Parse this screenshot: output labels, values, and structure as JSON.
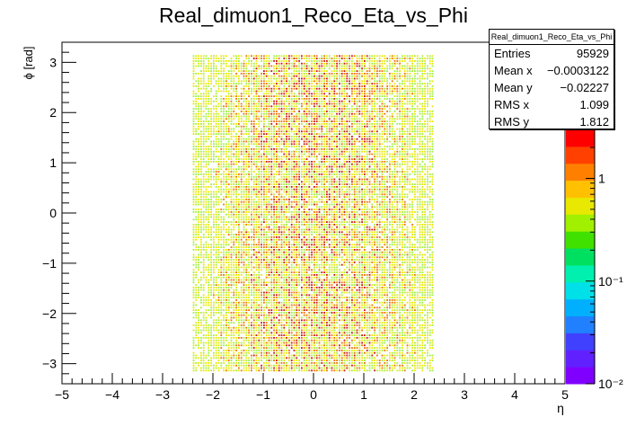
{
  "chart_data": {
    "type": "heatmap",
    "title": "Real_dimuon1_Reco_Eta_vs_Phi",
    "xlabel": "η",
    "ylabel": "ϕ [rad]",
    "xlim": [
      -5,
      5
    ],
    "ylim": [
      -3.4,
      3.4
    ],
    "x_ticks": [
      -5,
      -4,
      -3,
      -2,
      -1,
      0,
      1,
      2,
      3,
      4,
      5
    ],
    "y_ticks": [
      -3,
      -2,
      -1,
      0,
      1,
      2,
      3
    ],
    "data_x_range": [
      -2.4,
      2.4
    ],
    "data_y_range": [
      -3.14159,
      3.14159
    ],
    "z_scale": "log",
    "z_range": [
      0.01,
      3
    ],
    "z_ticks": [
      "10⁻²",
      "10⁻¹",
      "1"
    ],
    "stats": {
      "name": "Real_dimuon1_Reco_Eta_vs_Phi",
      "rows": [
        {
          "label": "Entries",
          "value": "95929"
        },
        {
          "label": "Mean x",
          "value": "−0.0003122"
        },
        {
          "label": "Mean y",
          "value": "−0.02227"
        },
        {
          "label": "RMS x",
          "value": "1.099"
        },
        {
          "label": "RMS y",
          "value": "1.812"
        }
      ]
    }
  },
  "colors": {
    "low": "#9ff03c",
    "mid": "#e8e800",
    "high": "#f07000",
    "peak": "#d01010",
    "palette": [
      "#8000ff",
      "#6020ff",
      "#4040ff",
      "#2080ff",
      "#00b0ff",
      "#00e0e8",
      "#00f0b0",
      "#00e060",
      "#40e000",
      "#a0f000",
      "#e8e800",
      "#ffc000",
      "#ff8000",
      "#ff4000",
      "#ff0000"
    ]
  }
}
